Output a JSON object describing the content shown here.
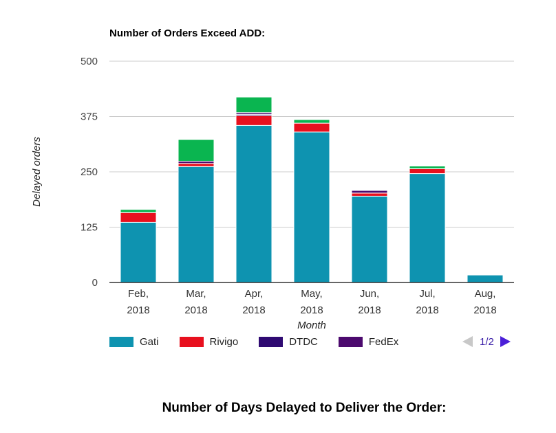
{
  "chart_data": {
    "type": "bar",
    "stacked": true,
    "title": "Number of Orders Exceed ADD:",
    "xlabel": "Month",
    "ylabel": "Delayed orders",
    "ylim": [
      0,
      500
    ],
    "yticks": [
      "0",
      "125",
      "250",
      "375",
      "500"
    ],
    "categories": [
      [
        "Feb,",
        "2018"
      ],
      [
        "Mar,",
        "2018"
      ],
      [
        "Apr,",
        "2018"
      ],
      [
        "May,",
        "2018"
      ],
      [
        "Jun,",
        "2018"
      ],
      [
        "Jul,",
        "2018"
      ],
      [
        "Aug,",
        "2018"
      ]
    ],
    "series": [
      {
        "name": "Gati",
        "color": "#0e93b0",
        "values": [
          136,
          262,
          355,
          340,
          195,
          246,
          17
        ]
      },
      {
        "name": "Rivigo",
        "color": "#e8101e",
        "values": [
          22,
          7,
          22,
          20,
          7,
          11,
          0
        ]
      },
      {
        "name": "DTDC",
        "color": "#2f0a72",
        "values": [
          0,
          0,
          3,
          0,
          0,
          0,
          0
        ]
      },
      {
        "name": "FedEx",
        "color": "#4c0a6e",
        "values": [
          0,
          5,
          4,
          0,
          6,
          0,
          0
        ]
      },
      {
        "name": "",
        "color": "#0ab550",
        "values": [
          7,
          49,
          35,
          8,
          1,
          6,
          1
        ]
      }
    ],
    "legend_position": "bottom",
    "grid": true
  },
  "pager": {
    "label": "1/2"
  },
  "second_title": "Number of Days Delayed to Deliver the Order:",
  "colors": {
    "axis": "#333333",
    "grid": "#cccccc",
    "pager": "#3b1fa8"
  }
}
